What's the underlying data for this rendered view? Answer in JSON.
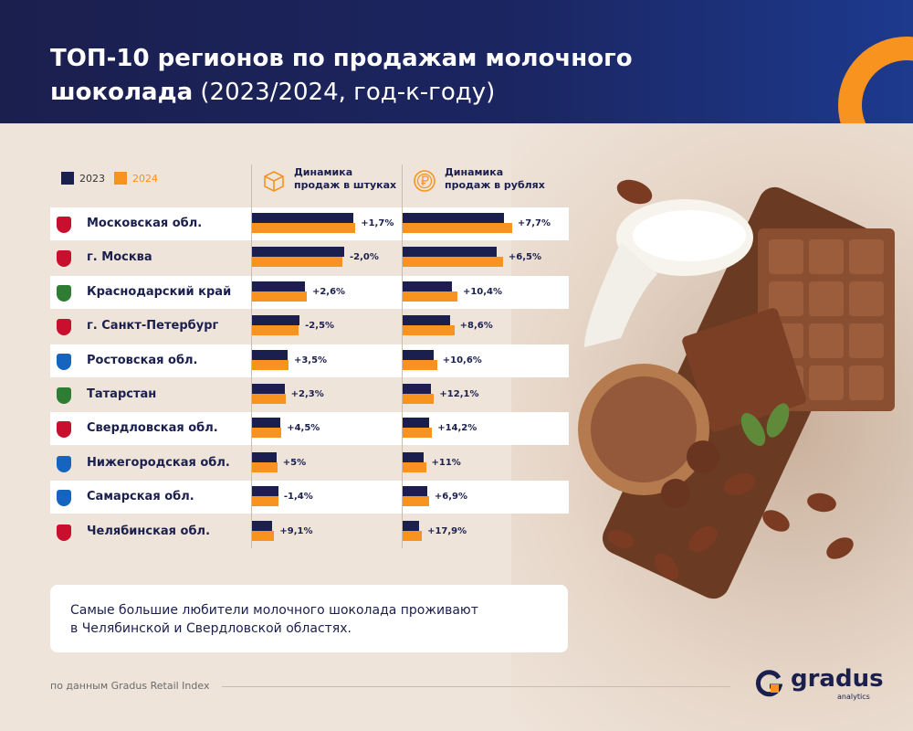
{
  "header": {
    "title_line1": "ТОП-10 регионов по продажам молочного",
    "title_line2": "шоколада",
    "title_sub": " (2023/2024, год-к-году)"
  },
  "legend": {
    "y2023": "2023",
    "y2024": "2024",
    "colors": {
      "y2023": "#1b1f4e",
      "y2024": "#f7931e"
    }
  },
  "columns": {
    "units_line1": "Динамика",
    "units_line2": "продаж в штуках",
    "rubles_line1": "Динамика",
    "rubles_line2": "продаж в рублях",
    "units_icon": "box-icon",
    "rubles_icon": "ruble-coin-icon"
  },
  "chart_data": {
    "type": "bar",
    "title": "ТОП-10 регионов по продажам молочного шоколада (2023/2024, год-к-году)",
    "categories": [
      "Московская обл.",
      "г. Москва",
      "Краснодарский край",
      "г. Санкт-Петербург",
      "Ростовская обл.",
      "Татарстан",
      "Свердловская обл.",
      "Нижегородская обл.",
      "Самарская обл.",
      "Челябинская обл."
    ],
    "units": {
      "label": "Динамика продаж в штуках",
      "series": [
        {
          "name": "2023",
          "values": [
            100,
            91,
            52,
            47,
            35,
            32,
            28,
            24,
            26,
            20
          ]
        },
        {
          "name": "2024",
          "values": [
            102,
            89,
            54,
            46,
            36,
            33,
            29,
            25,
            26,
            22
          ]
        }
      ],
      "change_labels": [
        "+1,7%",
        "-2,0%",
        "+2,6%",
        "-2,5%",
        "+3,5%",
        "+2,3%",
        "+4,5%",
        "+5%",
        "-1,4%",
        "+9,1%"
      ]
    },
    "rubles": {
      "label": "Динамика продаж в рублях",
      "series": [
        {
          "name": "2023",
          "values": [
            100,
            93,
            49,
            47,
            31,
            28,
            26,
            21,
            24,
            16
          ]
        },
        {
          "name": "2024",
          "values": [
            108,
            99,
            54,
            51,
            34,
            31,
            29,
            23,
            26,
            19
          ]
        }
      ],
      "change_labels": [
        "+7,7%",
        "+6,5%",
        "+10,4%",
        "+8,6%",
        "+10,6%",
        "+12,1%",
        "+14,2%",
        "+11%",
        "+6,9%",
        "+17,9%"
      ]
    }
  },
  "note": {
    "line1": "Самые большие любители молочного шоколада проживают",
    "line2": "в Челябинской и Свердловской областях."
  },
  "footer": {
    "source": "по данным Gradus Retail Index",
    "logo": "gradus",
    "logo_sub": "analytics"
  }
}
